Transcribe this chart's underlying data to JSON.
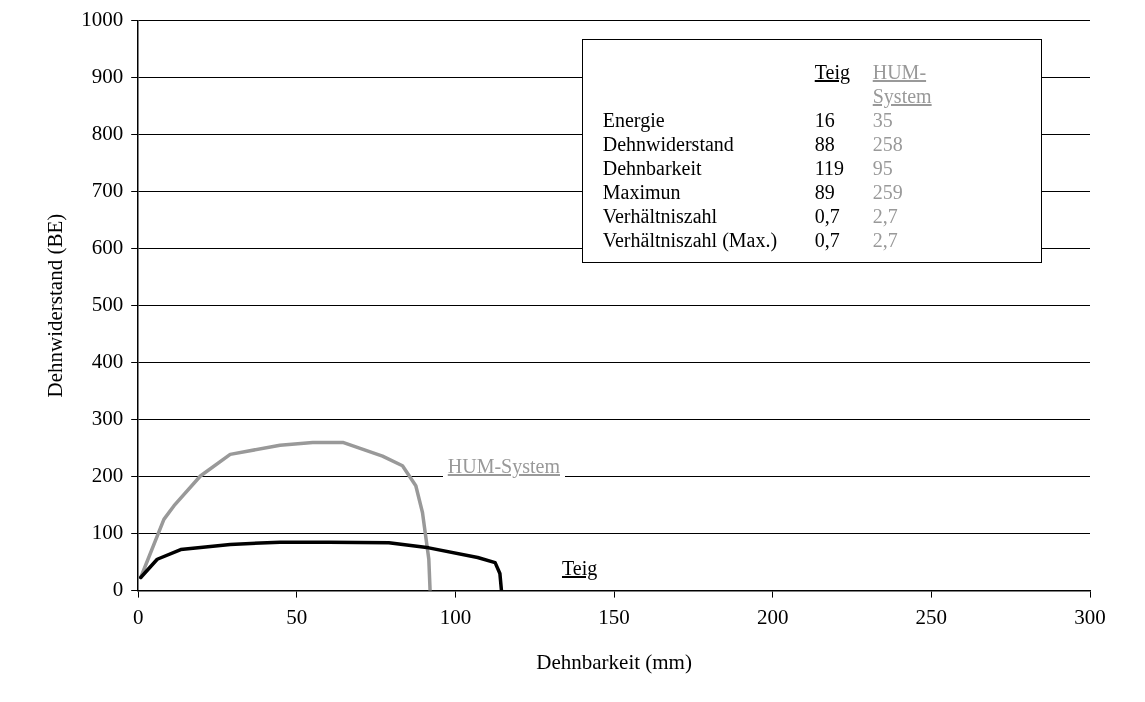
{
  "chart_data": {
    "type": "line",
    "xlabel": "Dehnbarkeit (mm)",
    "ylabel": "Dehnwiderstand (BE)",
    "xlim": [
      0,
      300
    ],
    "xticks": [
      0,
      50,
      100,
      150,
      200,
      250,
      300
    ],
    "ylim": [
      0,
      1000
    ],
    "yticks": [
      0,
      100,
      200,
      300,
      400,
      500,
      600,
      700,
      800,
      900,
      1000
    ],
    "grid": "y",
    "legend": false,
    "marker": "none",
    "line_style": "solid",
    "series": [
      {
        "name": "Teig",
        "color": "#000000",
        "x": [
          0.8,
          6,
          13.4,
          29,
          44.7,
          60,
          79,
          91.6,
          107,
          112.5,
          114,
          114.5
        ],
        "values": [
          23,
          55,
          72,
          81,
          85,
          85,
          84,
          75,
          58,
          49,
          30,
          0
        ]
      },
      {
        "name": "HUM-System",
        "color": "#999999",
        "x": [
          0.8,
          8.1,
          11.3,
          19.6,
          29,
          44.7,
          55,
          64.5,
          77,
          83.3,
          87.5,
          89.6,
          91.6,
          92
        ],
        "values": [
          23,
          125,
          149,
          201,
          239,
          255,
          260,
          260,
          236,
          219,
          184,
          137,
          55,
          0
        ]
      }
    ],
    "annotations": [
      "Energie",
      "16",
      "35",
      "Dehnwiderstand",
      "88",
      "258",
      "Dehnbarkeit",
      "119",
      "95",
      "Maximun",
      "89",
      "259",
      "Verhältniszahl",
      "0,7",
      "2,7",
      "Verhältniszahl (Max.)",
      "0,7",
      "2,7"
    ]
  }
}
